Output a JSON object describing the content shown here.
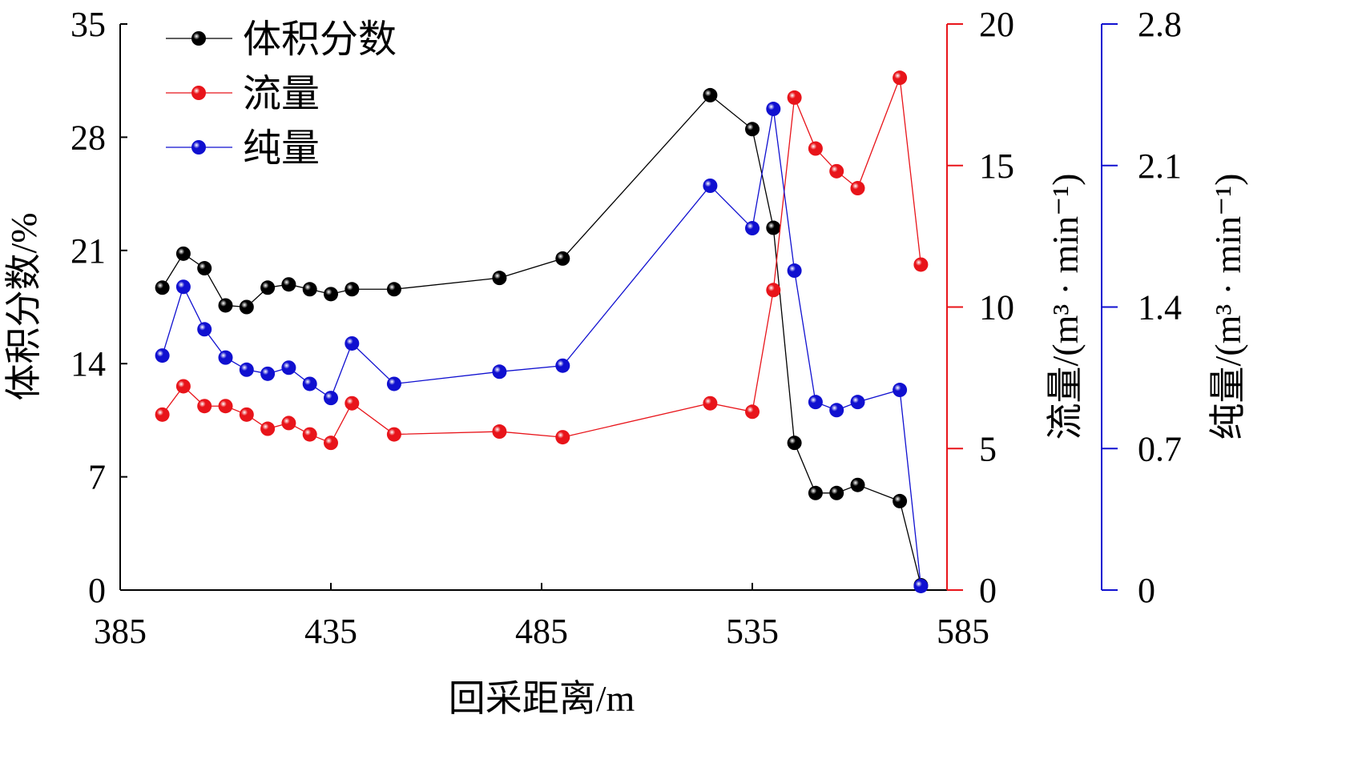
{
  "chart_data": {
    "type": "line",
    "xlabel": "回采距离/m",
    "xlim": [
      385,
      585
    ],
    "xticks": [
      385,
      435,
      485,
      535,
      585
    ],
    "x": [
      395,
      400,
      405,
      410,
      415,
      420,
      425,
      430,
      435,
      440,
      450,
      475,
      490,
      525,
      535,
      540,
      545,
      550,
      555,
      560,
      570,
      575
    ],
    "axes": [
      {
        "id": "left",
        "label": "体积分数/%",
        "lim": [
          0,
          35
        ],
        "ticks": [
          0,
          7,
          14,
          21,
          28,
          35
        ],
        "color": "#000000"
      },
      {
        "id": "red",
        "label": "流量/(m³ · min⁻¹)",
        "lim": [
          0,
          20
        ],
        "ticks": [
          0,
          5,
          10,
          15,
          20
        ],
        "color": "#e8141a"
      },
      {
        "id": "blue",
        "label": "纯量/(m³ · min⁻¹)",
        "lim": [
          0,
          2.8
        ],
        "ticks": [
          0,
          0.7,
          1.4,
          2.1,
          2.8
        ],
        "color": "#1010d0"
      }
    ],
    "series": [
      {
        "name": "体积分数",
        "axis": "left",
        "color": "#000000",
        "values": [
          18.7,
          20.8,
          19.9,
          17.6,
          17.5,
          18.7,
          18.9,
          18.6,
          18.3,
          18.6,
          18.6,
          19.3,
          20.5,
          30.6,
          28.5,
          22.4,
          9.1,
          6.0,
          6.0,
          6.5,
          5.5,
          0.3
        ]
      },
      {
        "name": "流量",
        "axis": "red",
        "color": "#e8141a",
        "values": [
          6.2,
          7.2,
          6.5,
          6.5,
          6.2,
          5.7,
          5.9,
          5.5,
          5.2,
          6.6,
          5.5,
          5.6,
          5.4,
          6.6,
          6.3,
          10.6,
          17.4,
          15.6,
          14.8,
          14.2,
          18.1,
          11.5
        ]
      },
      {
        "name": "纯量",
        "axis": "blue",
        "color": "#1010d0",
        "values": [
          1.16,
          1.5,
          1.29,
          1.15,
          1.09,
          1.07,
          1.1,
          1.02,
          0.95,
          1.22,
          1.02,
          1.08,
          1.11,
          2.0,
          1.79,
          2.38,
          1.58,
          0.93,
          0.89,
          0.93,
          0.99,
          0.02
        ]
      }
    ],
    "legend": "top-left",
    "grid": false
  }
}
